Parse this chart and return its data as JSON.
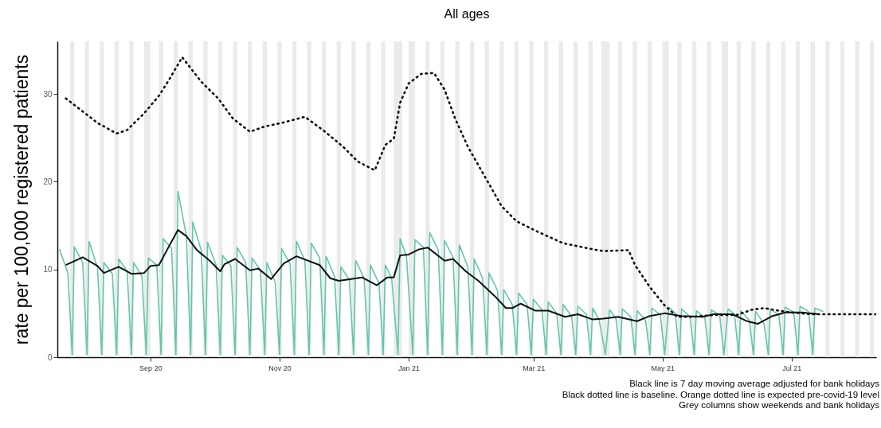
{
  "chart_data": {
    "type": "line",
    "title": "All ages",
    "ylabel": "rate per 100,000 registered patients",
    "xlim": [
      "2020-07-19",
      "2021-08-10"
    ],
    "xticks": [
      {
        "value": "2020-09-01",
        "label": "Sep 20"
      },
      {
        "value": "2020-11-01",
        "label": "Nov 20"
      },
      {
        "value": "2021-01-01",
        "label": "Jan 21"
      },
      {
        "value": "2021-03-01",
        "label": "Mar 21"
      },
      {
        "value": "2021-05-01",
        "label": "May 21"
      },
      {
        "value": "2021-07-01",
        "label": "Jul 21"
      }
    ],
    "ylim": [
      0,
      36
    ],
    "yticks": [
      0,
      10,
      20,
      30
    ],
    "series": [
      {
        "color": "#62c6ae",
        "line_style": "solid",
        "x": [
          "2020-07-20",
          "2020-07-24",
          "2020-07-26",
          "2020-07-27",
          "2020-07-31",
          "2020-08-02",
          "2020-08-03",
          "2020-08-07",
          "2020-08-09",
          "2020-08-10",
          "2020-08-14",
          "2020-08-16",
          "2020-08-17",
          "2020-08-21",
          "2020-08-23",
          "2020-08-24",
          "2020-08-28",
          "2020-08-30",
          "2020-08-31",
          "2020-09-04",
          "2020-09-06",
          "2020-09-07",
          "2020-09-11",
          "2020-09-13",
          "2020-09-14",
          "2020-09-18",
          "2020-09-20",
          "2020-09-21",
          "2020-09-25",
          "2020-09-27",
          "2020-09-28",
          "2020-10-02",
          "2020-10-04",
          "2020-10-05",
          "2020-10-09",
          "2020-10-11",
          "2020-10-12",
          "2020-10-16",
          "2020-10-18",
          "2020-10-19",
          "2020-10-23",
          "2020-10-25",
          "2020-10-26",
          "2020-10-30",
          "2020-11-01",
          "2020-11-02",
          "2020-11-06",
          "2020-11-08",
          "2020-11-09",
          "2020-11-13",
          "2020-11-15",
          "2020-11-16",
          "2020-11-20",
          "2020-11-22",
          "2020-11-23",
          "2020-11-27",
          "2020-11-29",
          "2020-11-30",
          "2020-12-04",
          "2020-12-06",
          "2020-12-07",
          "2020-12-11",
          "2020-12-13",
          "2020-12-14",
          "2020-12-18",
          "2020-12-20",
          "2020-12-21",
          "2020-12-24",
          "2020-12-27",
          "2020-12-28",
          "2020-12-31",
          "2021-01-03",
          "2021-01-04",
          "2021-01-08",
          "2021-01-10",
          "2021-01-11",
          "2021-01-15",
          "2021-01-17",
          "2021-01-18",
          "2021-01-22",
          "2021-01-24",
          "2021-01-25",
          "2021-01-29",
          "2021-01-31",
          "2021-02-01",
          "2021-02-05",
          "2021-02-07",
          "2021-02-08",
          "2021-02-12",
          "2021-02-14",
          "2021-02-15",
          "2021-02-19",
          "2021-02-21",
          "2021-02-22",
          "2021-02-26",
          "2021-02-28",
          "2021-03-01",
          "2021-03-05",
          "2021-03-07",
          "2021-03-08",
          "2021-03-12",
          "2021-03-14",
          "2021-03-15",
          "2021-03-19",
          "2021-03-21",
          "2021-03-22",
          "2021-03-26",
          "2021-03-28",
          "2021-03-29",
          "2021-04-01",
          "2021-04-04",
          "2021-04-06",
          "2021-04-09",
          "2021-04-11",
          "2021-04-12",
          "2021-04-16",
          "2021-04-18",
          "2021-04-19",
          "2021-04-23",
          "2021-04-25",
          "2021-04-26",
          "2021-04-30",
          "2021-05-02",
          "2021-05-04",
          "2021-05-07",
          "2021-05-09",
          "2021-05-10",
          "2021-05-14",
          "2021-05-16",
          "2021-05-17",
          "2021-05-21",
          "2021-05-23",
          "2021-05-24",
          "2021-05-28",
          "2021-05-30",
          "2021-06-01",
          "2021-06-04",
          "2021-06-06",
          "2021-06-07",
          "2021-06-11",
          "2021-06-13",
          "2021-06-14",
          "2021-06-18",
          "2021-06-20",
          "2021-06-21",
          "2021-06-25",
          "2021-06-27",
          "2021-06-28",
          "2021-07-02",
          "2021-07-04",
          "2021-07-05",
          "2021-07-09",
          "2021-07-11",
          "2021-07-12",
          "2021-07-16"
        ],
        "values": [
          12.3,
          9.6,
          0.3,
          12.6,
          10.8,
          0.3,
          13.2,
          10.2,
          0.3,
          10.8,
          9.5,
          0.3,
          11.2,
          9.8,
          0.3,
          10.8,
          9.2,
          0.3,
          11.3,
          10.5,
          0.3,
          13.5,
          12.4,
          0.3,
          18.9,
          13.8,
          0.3,
          15.4,
          12.2,
          0.3,
          13.1,
          10.5,
          0.3,
          11.6,
          10.4,
          0.3,
          12.5,
          10.8,
          0.3,
          11.3,
          9.9,
          0.3,
          10.8,
          8.5,
          0.3,
          12.4,
          10.6,
          0.3,
          13.2,
          11.0,
          0.3,
          13.0,
          11.3,
          0.3,
          11.5,
          9.2,
          0.3,
          10.3,
          8.8,
          0.3,
          11.0,
          9.0,
          0.3,
          10.5,
          8.4,
          0.3,
          10.5,
          9.0,
          0.3,
          13.5,
          11.5,
          0.3,
          13.4,
          12.5,
          0.3,
          14.2,
          12.2,
          0.3,
          13.3,
          11.4,
          0.3,
          12.8,
          10.3,
          0.3,
          11.2,
          9.0,
          0.3,
          9.6,
          7.6,
          0.3,
          7.7,
          6.0,
          0.3,
          7.3,
          6.0,
          0.3,
          6.6,
          5.4,
          0.3,
          6.3,
          5.0,
          0.3,
          6.0,
          4.7,
          0.3,
          5.8,
          4.9,
          0.3,
          5.6,
          4.3,
          0.3,
          5.4,
          4.4,
          0.3,
          5.5,
          4.6,
          0.3,
          5.3,
          4.2,
          0.3,
          5.6,
          4.8,
          0.3,
          5.7,
          5.0,
          0.3,
          5.5,
          4.6,
          0.3,
          5.3,
          4.5,
          0.3,
          5.4,
          4.8,
          0.3,
          5.5,
          4.9,
          0.3,
          5.3,
          4.2,
          0.3,
          5.2,
          3.8,
          0.3,
          5.5,
          4.8,
          0.3,
          5.7,
          5.1,
          0.3,
          5.8,
          5.2,
          0.3,
          5.6,
          5.2
        ]
      },
      {
        "color": "#111111",
        "line_style": "solid",
        "x": [
          "2020-07-23",
          "2020-07-31",
          "2020-08-07",
          "2020-08-10",
          "2020-08-17",
          "2020-08-23",
          "2020-08-29",
          "2020-09-01",
          "2020-09-05",
          "2020-09-09",
          "2020-09-14",
          "2020-09-18",
          "2020-09-23",
          "2020-09-29",
          "2020-10-04",
          "2020-10-06",
          "2020-10-11",
          "2020-10-18",
          "2020-10-22",
          "2020-10-28",
          "2020-11-03",
          "2020-11-09",
          "2020-11-20",
          "2020-11-25",
          "2020-11-29",
          "2020-12-10",
          "2020-12-17",
          "2020-12-22",
          "2020-12-25",
          "2020-12-28",
          "2021-01-01",
          "2021-01-06",
          "2021-01-10",
          "2021-01-18",
          "2021-01-22",
          "2021-01-28",
          "2021-02-03",
          "2021-02-11",
          "2021-02-16",
          "2021-02-19",
          "2021-02-23",
          "2021-03-02",
          "2021-03-08",
          "2021-03-16",
          "2021-03-22",
          "2021-03-29",
          "2021-04-03",
          "2021-04-10",
          "2021-04-19",
          "2021-04-25",
          "2021-05-02",
          "2021-05-10",
          "2021-05-20",
          "2021-05-25",
          "2021-06-03",
          "2021-06-10",
          "2021-06-15",
          "2021-06-22",
          "2021-06-28",
          "2021-07-06",
          "2021-07-14"
        ],
        "values": [
          10.5,
          11.4,
          10.4,
          9.6,
          10.3,
          9.5,
          9.6,
          10.4,
          10.5,
          12.3,
          14.5,
          13.8,
          12.2,
          11.0,
          9.8,
          10.6,
          11.2,
          9.9,
          10.1,
          8.9,
          10.7,
          11.5,
          10.5,
          9.0,
          8.7,
          9.1,
          8.2,
          9.1,
          9.1,
          11.6,
          11.7,
          12.3,
          12.5,
          11.0,
          11.2,
          9.8,
          8.7,
          6.9,
          5.6,
          5.6,
          6.1,
          5.3,
          5.3,
          4.6,
          4.9,
          4.3,
          4.4,
          4.6,
          4.1,
          4.7,
          5.0,
          4.7,
          4.6,
          4.9,
          4.9,
          4.1,
          3.8,
          4.7,
          5.1,
          5.1,
          4.9
        ]
      },
      {
        "color": "#111111",
        "line_style": "dotted",
        "x": [
          "2020-07-23",
          "2020-08-07",
          "2020-08-16",
          "2020-08-21",
          "2020-08-29",
          "2020-09-05",
          "2020-09-10",
          "2020-09-16",
          "2020-09-25",
          "2020-10-03",
          "2020-10-10",
          "2020-10-18",
          "2020-10-25",
          "2020-11-02",
          "2020-11-13",
          "2020-11-22",
          "2020-12-01",
          "2020-12-08",
          "2020-12-16",
          "2020-12-21",
          "2020-12-25",
          "2020-12-28",
          "2021-01-01",
          "2021-01-07",
          "2021-01-13",
          "2021-01-18",
          "2021-01-23",
          "2021-01-29",
          "2021-02-06",
          "2021-02-14",
          "2021-02-21",
          "2021-03-03",
          "2021-03-15",
          "2021-03-29",
          "2021-04-03",
          "2021-04-15",
          "2021-04-18",
          "2021-04-25",
          "2021-05-02",
          "2021-05-08",
          "2021-05-15",
          "2021-05-25",
          "2021-06-05",
          "2021-06-12",
          "2021-06-18",
          "2021-06-25",
          "2021-07-01",
          "2021-07-10",
          "2021-08-10"
        ],
        "values": [
          29.5,
          26.7,
          25.5,
          25.9,
          27.8,
          29.8,
          31.7,
          34.2,
          31.4,
          29.5,
          27.2,
          25.7,
          26.3,
          26.7,
          27.4,
          25.8,
          24.0,
          22.3,
          21.3,
          24.2,
          24.9,
          29.0,
          31.2,
          32.3,
          32.4,
          30.5,
          27.2,
          24.0,
          20.6,
          17.2,
          15.5,
          14.3,
          13.0,
          12.3,
          12.1,
          12.2,
          10.5,
          8.0,
          5.9,
          4.6,
          4.6,
          4.8,
          4.8,
          5.4,
          5.6,
          5.3,
          5.1,
          4.9,
          4.9
        ]
      }
    ],
    "bands": [
      {
        "axis": "x",
        "from": "2020-07-25",
        "to": "2020-07-27",
        "color": "#ebebeb"
      },
      {
        "axis": "x",
        "from": "2020-08-01",
        "to": "2020-08-03",
        "color": "#ebebeb"
      },
      {
        "axis": "x",
        "from": "2020-08-08",
        "to": "2020-08-10",
        "color": "#ebebeb"
      },
      {
        "axis": "x",
        "from": "2020-08-15",
        "to": "2020-08-17",
        "color": "#ebebeb"
      },
      {
        "axis": "x",
        "from": "2020-08-22",
        "to": "2020-08-24",
        "color": "#ebebeb"
      },
      {
        "axis": "x",
        "from": "2020-08-29",
        "to": "2020-09-01",
        "color": "#ebebeb"
      },
      {
        "axis": "x",
        "from": "2020-09-05",
        "to": "2020-09-07",
        "color": "#ebebeb"
      },
      {
        "axis": "x",
        "from": "2020-09-12",
        "to": "2020-09-14",
        "color": "#ebebeb"
      },
      {
        "axis": "x",
        "from": "2020-09-19",
        "to": "2020-09-21",
        "color": "#ebebeb"
      },
      {
        "axis": "x",
        "from": "2020-09-26",
        "to": "2020-09-28",
        "color": "#ebebeb"
      },
      {
        "axis": "x",
        "from": "2020-10-03",
        "to": "2020-10-05",
        "color": "#ebebeb"
      },
      {
        "axis": "x",
        "from": "2020-10-10",
        "to": "2020-10-12",
        "color": "#ebebeb"
      },
      {
        "axis": "x",
        "from": "2020-10-17",
        "to": "2020-10-19",
        "color": "#ebebeb"
      },
      {
        "axis": "x",
        "from": "2020-10-24",
        "to": "2020-10-26",
        "color": "#ebebeb"
      },
      {
        "axis": "x",
        "from": "2020-10-31",
        "to": "2020-11-02",
        "color": "#ebebeb"
      },
      {
        "axis": "x",
        "from": "2020-11-07",
        "to": "2020-11-09",
        "color": "#ebebeb"
      },
      {
        "axis": "x",
        "from": "2020-11-14",
        "to": "2020-11-16",
        "color": "#ebebeb"
      },
      {
        "axis": "x",
        "from": "2020-11-21",
        "to": "2020-11-23",
        "color": "#ebebeb"
      },
      {
        "axis": "x",
        "from": "2020-11-28",
        "to": "2020-11-30",
        "color": "#ebebeb"
      },
      {
        "axis": "x",
        "from": "2020-12-05",
        "to": "2020-12-07",
        "color": "#ebebeb"
      },
      {
        "axis": "x",
        "from": "2020-12-12",
        "to": "2020-12-14",
        "color": "#ebebeb"
      },
      {
        "axis": "x",
        "from": "2020-12-19",
        "to": "2020-12-21",
        "color": "#ebebeb"
      },
      {
        "axis": "x",
        "from": "2020-12-25",
        "to": "2020-12-29",
        "color": "#ebebeb"
      },
      {
        "axis": "x",
        "from": "2021-01-01",
        "to": "2021-01-04",
        "color": "#ebebeb"
      },
      {
        "axis": "x",
        "from": "2021-01-09",
        "to": "2021-01-11",
        "color": "#ebebeb"
      },
      {
        "axis": "x",
        "from": "2021-01-16",
        "to": "2021-01-18",
        "color": "#ebebeb"
      },
      {
        "axis": "x",
        "from": "2021-01-23",
        "to": "2021-01-25",
        "color": "#ebebeb"
      },
      {
        "axis": "x",
        "from": "2021-01-30",
        "to": "2021-02-01",
        "color": "#ebebeb"
      },
      {
        "axis": "x",
        "from": "2021-02-06",
        "to": "2021-02-08",
        "color": "#ebebeb"
      },
      {
        "axis": "x",
        "from": "2021-02-13",
        "to": "2021-02-15",
        "color": "#ebebeb"
      },
      {
        "axis": "x",
        "from": "2021-02-20",
        "to": "2021-02-22",
        "color": "#ebebeb"
      },
      {
        "axis": "x",
        "from": "2021-02-27",
        "to": "2021-03-01",
        "color": "#ebebeb"
      },
      {
        "axis": "x",
        "from": "2021-03-06",
        "to": "2021-03-08",
        "color": "#ebebeb"
      },
      {
        "axis": "x",
        "from": "2021-03-13",
        "to": "2021-03-15",
        "color": "#ebebeb"
      },
      {
        "axis": "x",
        "from": "2021-03-20",
        "to": "2021-03-22",
        "color": "#ebebeb"
      },
      {
        "axis": "x",
        "from": "2021-03-27",
        "to": "2021-03-29",
        "color": "#ebebeb"
      },
      {
        "axis": "x",
        "from": "2021-04-02",
        "to": "2021-04-06",
        "color": "#ebebeb"
      },
      {
        "axis": "x",
        "from": "2021-04-10",
        "to": "2021-04-12",
        "color": "#ebebeb"
      },
      {
        "axis": "x",
        "from": "2021-04-17",
        "to": "2021-04-19",
        "color": "#ebebeb"
      },
      {
        "axis": "x",
        "from": "2021-04-24",
        "to": "2021-04-26",
        "color": "#ebebeb"
      },
      {
        "axis": "x",
        "from": "2021-05-01",
        "to": "2021-05-04",
        "color": "#ebebeb"
      },
      {
        "axis": "x",
        "from": "2021-05-08",
        "to": "2021-05-10",
        "color": "#ebebeb"
      },
      {
        "axis": "x",
        "from": "2021-05-15",
        "to": "2021-05-17",
        "color": "#ebebeb"
      },
      {
        "axis": "x",
        "from": "2021-05-22",
        "to": "2021-05-24",
        "color": "#ebebeb"
      },
      {
        "axis": "x",
        "from": "2021-05-29",
        "to": "2021-06-01",
        "color": "#ebebeb"
      },
      {
        "axis": "x",
        "from": "2021-06-05",
        "to": "2021-06-07",
        "color": "#ebebeb"
      },
      {
        "axis": "x",
        "from": "2021-06-12",
        "to": "2021-06-14",
        "color": "#ebebeb"
      },
      {
        "axis": "x",
        "from": "2021-06-19",
        "to": "2021-06-21",
        "color": "#ebebeb"
      },
      {
        "axis": "x",
        "from": "2021-06-26",
        "to": "2021-06-28",
        "color": "#ebebeb"
      },
      {
        "axis": "x",
        "from": "2021-07-03",
        "to": "2021-07-05",
        "color": "#ebebeb"
      },
      {
        "axis": "x",
        "from": "2021-07-10",
        "to": "2021-07-12",
        "color": "#ebebeb"
      },
      {
        "axis": "x",
        "from": "2021-07-17",
        "to": "2021-07-19",
        "color": "#ebebeb"
      },
      {
        "axis": "x",
        "from": "2021-07-24",
        "to": "2021-07-26",
        "color": "#ebebeb"
      },
      {
        "axis": "x",
        "from": "2021-07-31",
        "to": "2021-08-02",
        "color": "#ebebeb"
      },
      {
        "axis": "x",
        "from": "2021-08-07",
        "to": "2021-08-09",
        "color": "#ebebeb"
      }
    ],
    "annotations": [
      "Black line is 7 day moving average adjusted for bank holidays",
      "Black dotted line is baseline. Orange dotted line is expected pre-covid-19 level",
      "Grey columns show weekends and bank holidays"
    ]
  }
}
